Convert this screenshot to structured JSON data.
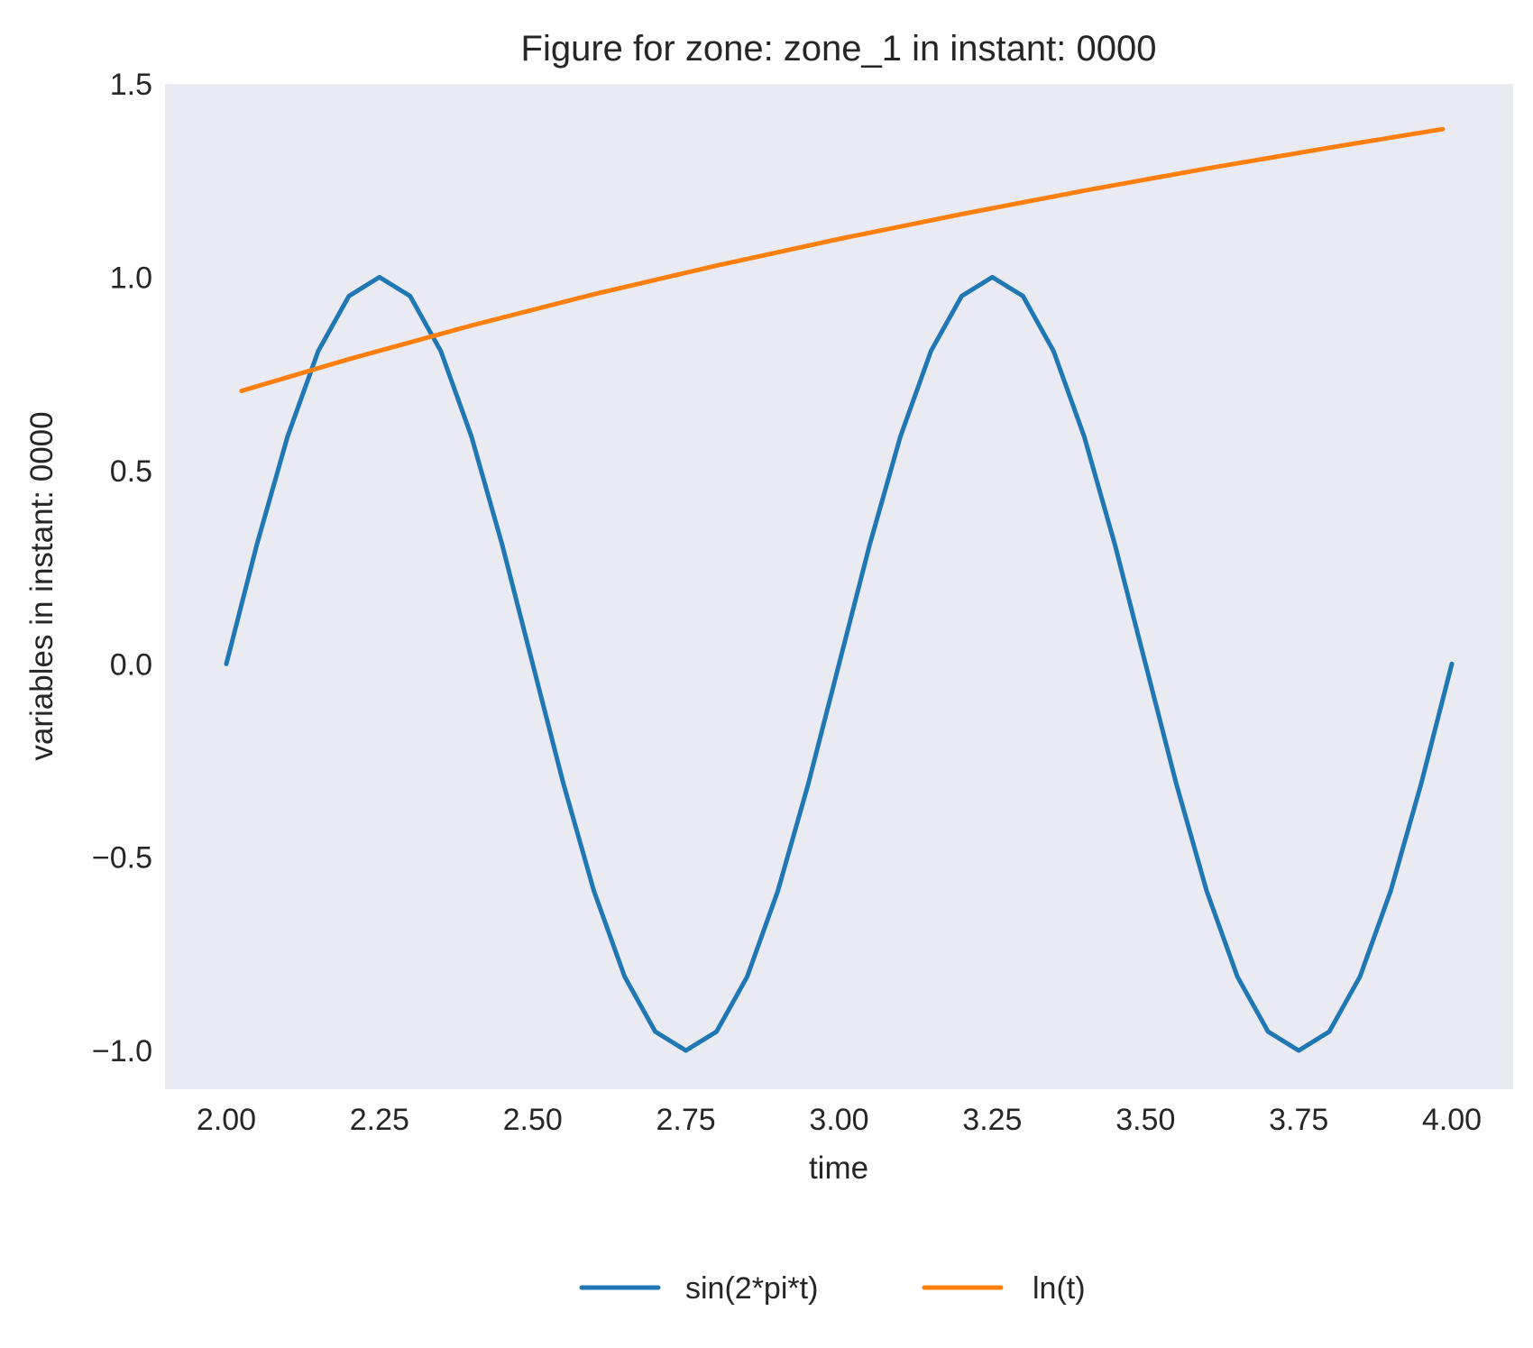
{
  "chart_data": {
    "type": "line",
    "title": "Figure for zone: zone_1 in instant: 0000",
    "xlabel": "time",
    "ylabel": "variables in instant: 0000",
    "xlim": [
      1.9,
      4.1
    ],
    "ylim": [
      -1.1,
      1.5
    ],
    "xticks": [
      "2.00",
      "2.25",
      "2.50",
      "2.75",
      "3.00",
      "3.25",
      "3.50",
      "3.75",
      "4.00"
    ],
    "yticks": [
      "1.5",
      "1.0",
      "0.5",
      "0.0",
      "−0.5",
      "−1.0"
    ],
    "grid": false,
    "legend_position": "bottom-center",
    "background_color": "#eaeaf2",
    "series": [
      {
        "name": "sin(2*pi*t)",
        "color": "#1f77b4",
        "x": [
          2.0,
          2.05,
          2.1,
          2.15,
          2.2,
          2.25,
          2.3,
          2.35,
          2.4,
          2.45,
          2.5,
          2.55,
          2.6,
          2.65,
          2.7,
          2.75,
          2.8,
          2.85,
          2.9,
          2.95,
          3.0,
          3.05,
          3.1,
          3.15,
          3.2,
          3.25,
          3.3,
          3.35,
          3.4,
          3.45,
          3.5,
          3.55,
          3.6,
          3.65,
          3.7,
          3.75,
          3.8,
          3.85,
          3.9,
          3.95,
          4.0
        ],
        "values": [
          0.0,
          0.309,
          0.588,
          0.809,
          0.951,
          1.0,
          0.951,
          0.809,
          0.588,
          0.309,
          0.0,
          -0.309,
          -0.588,
          -0.809,
          -0.951,
          -1.0,
          -0.951,
          -0.809,
          -0.588,
          -0.309,
          0.0,
          0.309,
          0.588,
          0.809,
          0.951,
          1.0,
          0.951,
          0.809,
          0.588,
          0.309,
          0.0,
          -0.309,
          -0.588,
          -0.809,
          -0.951,
          -1.0,
          -0.951,
          -0.809,
          -0.588,
          -0.309,
          0.0
        ]
      },
      {
        "name": "ln(t)",
        "color": "#ff7f0e",
        "x": [
          2.025,
          2.2,
          2.4,
          2.6,
          2.8,
          3.0,
          3.2,
          3.4,
          3.6,
          3.8,
          3.985
        ],
        "values": [
          0.706,
          0.788,
          0.875,
          0.956,
          1.03,
          1.099,
          1.163,
          1.224,
          1.281,
          1.335,
          1.383
        ]
      }
    ]
  }
}
